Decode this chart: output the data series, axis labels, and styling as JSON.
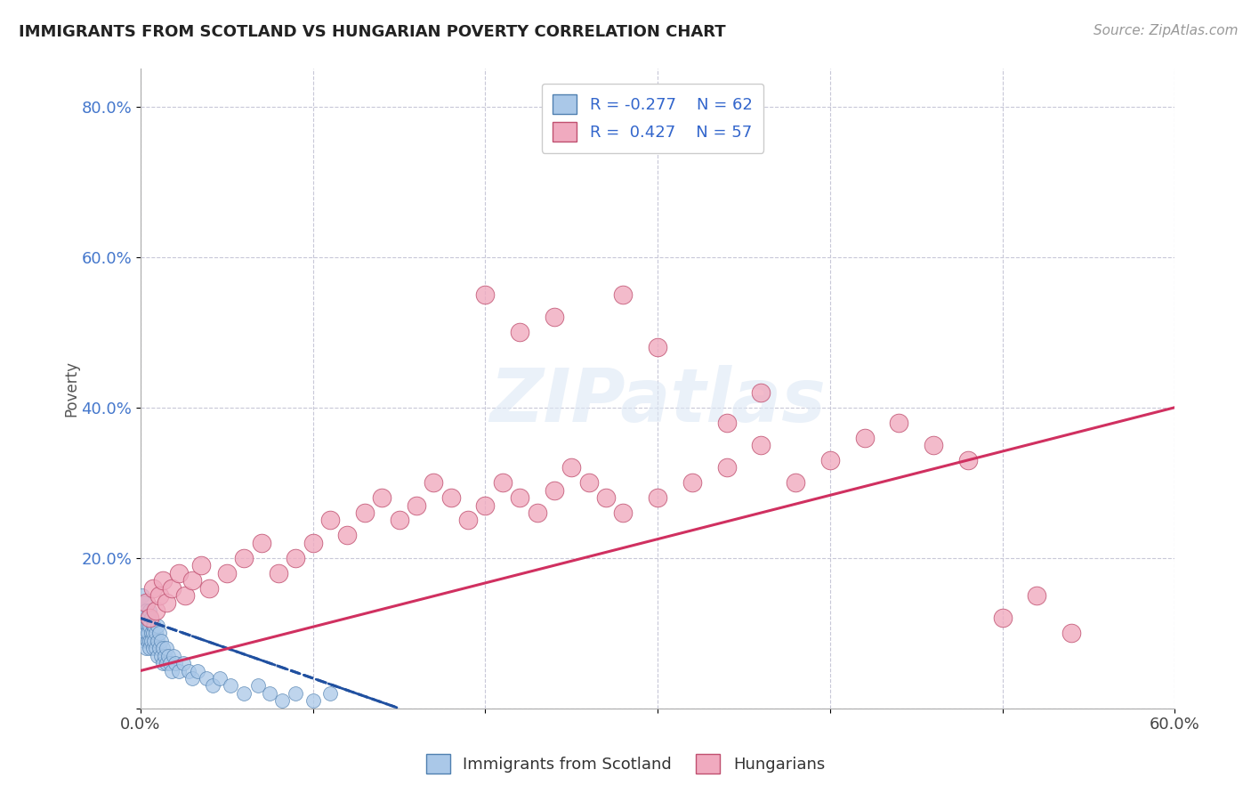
{
  "title": "IMMIGRANTS FROM SCOTLAND VS HUNGARIAN POVERTY CORRELATION CHART",
  "source": "Source: ZipAtlas.com",
  "ylabel": "Poverty",
  "r_scotland": -0.277,
  "n_scotland": 62,
  "r_hungarian": 0.427,
  "n_hungarian": 57,
  "xlim": [
    0.0,
    0.6
  ],
  "ylim": [
    0.0,
    0.85
  ],
  "xticks": [
    0.0,
    0.1,
    0.2,
    0.3,
    0.4,
    0.5,
    0.6
  ],
  "xticklabels": [
    "0.0%",
    "",
    "",
    "",
    "",
    "",
    "60.0%"
  ],
  "yticks": [
    0.0,
    0.2,
    0.4,
    0.6,
    0.8
  ],
  "yticklabels": [
    "",
    "20.0%",
    "40.0%",
    "60.0%",
    "80.0%"
  ],
  "scotland_color": "#aac8e8",
  "hungarian_color": "#f0aabf",
  "scotland_edge": "#5080b0",
  "hungarian_edge": "#c05070",
  "trend_scotland_color": "#2050a0",
  "trend_hungarian_color": "#d03060",
  "background": "#ffffff",
  "grid_color": "#c8c8d8",
  "watermark": "ZIPatlas",
  "scotland_x": [
    0.001,
    0.001,
    0.001,
    0.002,
    0.002,
    0.002,
    0.002,
    0.003,
    0.003,
    0.003,
    0.003,
    0.004,
    0.004,
    0.004,
    0.004,
    0.005,
    0.005,
    0.005,
    0.005,
    0.006,
    0.006,
    0.006,
    0.007,
    0.007,
    0.007,
    0.008,
    0.008,
    0.009,
    0.009,
    0.01,
    0.01,
    0.01,
    0.011,
    0.011,
    0.012,
    0.012,
    0.013,
    0.013,
    0.014,
    0.015,
    0.015,
    0.016,
    0.017,
    0.018,
    0.019,
    0.02,
    0.022,
    0.025,
    0.028,
    0.03,
    0.033,
    0.038,
    0.042,
    0.046,
    0.052,
    0.06,
    0.068,
    0.075,
    0.082,
    0.09,
    0.1,
    0.11
  ],
  "scotland_y": [
    0.12,
    0.15,
    0.1,
    0.13,
    0.11,
    0.14,
    0.09,
    0.12,
    0.1,
    0.13,
    0.08,
    0.11,
    0.09,
    0.12,
    0.1,
    0.11,
    0.09,
    0.13,
    0.08,
    0.1,
    0.12,
    0.09,
    0.11,
    0.08,
    0.1,
    0.09,
    0.11,
    0.08,
    0.1,
    0.09,
    0.11,
    0.07,
    0.08,
    0.1,
    0.07,
    0.09,
    0.08,
    0.06,
    0.07,
    0.08,
    0.06,
    0.07,
    0.06,
    0.05,
    0.07,
    0.06,
    0.05,
    0.06,
    0.05,
    0.04,
    0.05,
    0.04,
    0.03,
    0.04,
    0.03,
    0.02,
    0.03,
    0.02,
    0.01,
    0.02,
    0.01,
    0.02
  ],
  "hungarian_x": [
    0.003,
    0.005,
    0.007,
    0.009,
    0.011,
    0.013,
    0.015,
    0.018,
    0.022,
    0.026,
    0.03,
    0.035,
    0.04,
    0.05,
    0.06,
    0.07,
    0.08,
    0.09,
    0.1,
    0.11,
    0.12,
    0.13,
    0.14,
    0.15,
    0.16,
    0.17,
    0.18,
    0.19,
    0.2,
    0.21,
    0.22,
    0.23,
    0.24,
    0.25,
    0.26,
    0.27,
    0.28,
    0.3,
    0.32,
    0.34,
    0.36,
    0.38,
    0.4,
    0.42,
    0.44,
    0.46,
    0.48,
    0.5,
    0.52,
    0.54,
    0.34,
    0.36,
    0.28,
    0.3,
    0.2,
    0.22,
    0.24
  ],
  "hungarian_y": [
    0.14,
    0.12,
    0.16,
    0.13,
    0.15,
    0.17,
    0.14,
    0.16,
    0.18,
    0.15,
    0.17,
    0.19,
    0.16,
    0.18,
    0.2,
    0.22,
    0.18,
    0.2,
    0.22,
    0.25,
    0.23,
    0.26,
    0.28,
    0.25,
    0.27,
    0.3,
    0.28,
    0.25,
    0.27,
    0.3,
    0.28,
    0.26,
    0.29,
    0.32,
    0.3,
    0.28,
    0.26,
    0.28,
    0.3,
    0.32,
    0.35,
    0.3,
    0.33,
    0.36,
    0.38,
    0.35,
    0.33,
    0.12,
    0.15,
    0.1,
    0.38,
    0.42,
    0.55,
    0.48,
    0.55,
    0.5,
    0.52
  ],
  "trend_h_x0": 0.0,
  "trend_h_y0": 0.05,
  "trend_h_x1": 0.6,
  "trend_h_y1": 0.4,
  "trend_s_x0": 0.0,
  "trend_s_y0": 0.12,
  "trend_s_x1": 0.15,
  "trend_s_y1": 0.0
}
